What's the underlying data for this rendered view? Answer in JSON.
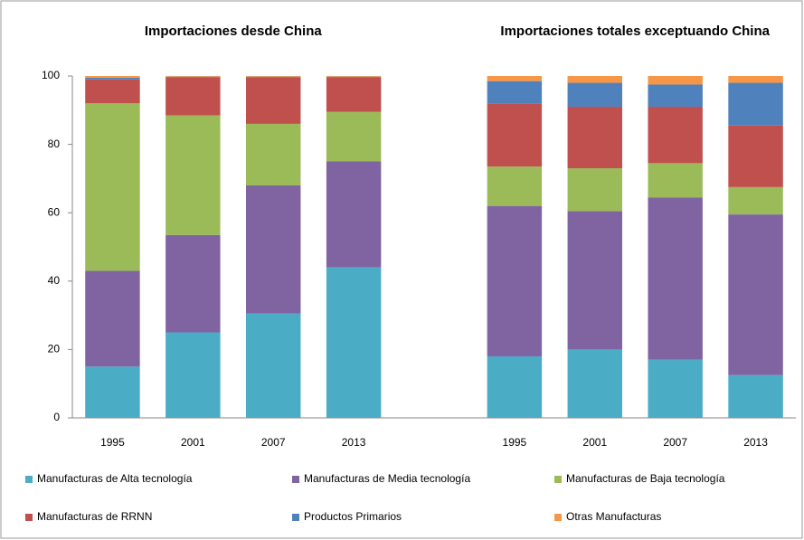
{
  "chart_data": {
    "type": "stacked_bar",
    "group_titles": [
      "Importaciones desde China",
      "Importaciones totales exceptuando China"
    ],
    "categories": [
      "1995",
      "2001",
      "2007",
      "2013",
      null,
      "1995",
      "2001",
      "2007",
      "2013"
    ],
    "ylim": [
      0,
      100
    ],
    "yticks": [
      0,
      20,
      40,
      60,
      80,
      100
    ],
    "grid": false,
    "series": [
      {
        "name": "Manufacturas de Alta tecnología",
        "color": "#4bacc6",
        "values": [
          15,
          25,
          30.5,
          44,
          null,
          18,
          20,
          17,
          12.5
        ]
      },
      {
        "name": "Manufacturas de Media tecnología",
        "color": "#8064a2",
        "values": [
          28,
          28.5,
          37.5,
          31,
          null,
          44,
          40.5,
          47.5,
          47
        ]
      },
      {
        "name": "Manufacturas de Baja tecnología",
        "color": "#9bbb59",
        "values": [
          49,
          35,
          18,
          14.5,
          null,
          11.5,
          12.5,
          10,
          8
        ]
      },
      {
        "name": "Manufacturas de RRNN",
        "color": "#c0504d",
        "values": [
          7,
          11,
          13.5,
          10,
          null,
          18.5,
          18,
          16.5,
          18
        ]
      },
      {
        "name": "Productos Primarios",
        "color": "#4f81bd",
        "values": [
          0.5,
          0.3,
          0.3,
          0.3,
          null,
          6.5,
          7,
          6.5,
          12.5
        ]
      },
      {
        "name": "Otras Manufacturas",
        "color": "#f79646",
        "values": [
          0.5,
          0.2,
          0.2,
          0.2,
          null,
          1.5,
          2,
          2.5,
          2
        ]
      }
    ]
  }
}
